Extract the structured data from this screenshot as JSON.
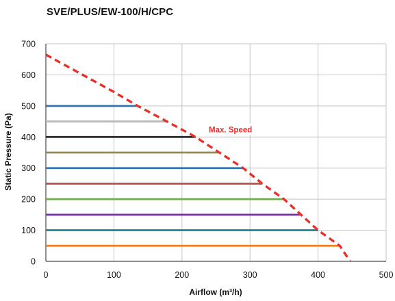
{
  "chart_data": {
    "type": "line",
    "title": "SVE/PLUS/EW-100/H/CPC",
    "xlabel": "Airflow (m³/h)",
    "ylabel": "Static Pressure (Pa)",
    "xlim": [
      0,
      500
    ],
    "ylim": [
      0,
      700
    ],
    "x_ticks": [
      0,
      100,
      200,
      300,
      400,
      500
    ],
    "y_ticks": [
      0,
      100,
      200,
      300,
      400,
      500,
      600,
      700
    ],
    "grid": true,
    "series": [
      {
        "pressure": 500,
        "airflow_end": 135,
        "color": "#2e75b6"
      },
      {
        "pressure": 450,
        "airflow_end": 178,
        "color": "#b8b8b8"
      },
      {
        "pressure": 400,
        "airflow_end": 220,
        "color": "#262626"
      },
      {
        "pressure": 350,
        "airflow_end": 255,
        "color": "#948a54"
      },
      {
        "pressure": 300,
        "airflow_end": 290,
        "color": "#2e75b6"
      },
      {
        "pressure": 250,
        "airflow_end": 318,
        "color": "#c0504d"
      },
      {
        "pressure": 200,
        "airflow_end": 350,
        "color": "#70ad47"
      },
      {
        "pressure": 150,
        "airflow_end": 375,
        "color": "#7030a0"
      },
      {
        "pressure": 100,
        "airflow_end": 400,
        "color": "#1f8a9a"
      },
      {
        "pressure": 50,
        "airflow_end": 432,
        "color": "#f07d22"
      }
    ],
    "max_speed_curve": {
      "name": "Max. Speed",
      "color": "#e8302a",
      "x": [
        0,
        100,
        135,
        178,
        220,
        255,
        290,
        318,
        350,
        375,
        400,
        432,
        447
      ],
      "y": [
        665,
        545,
        500,
        450,
        400,
        350,
        300,
        250,
        200,
        150,
        100,
        50,
        0
      ]
    },
    "annotation": {
      "text": "Max. Speed",
      "x": 240,
      "y": 428,
      "color": "#e8302a"
    }
  }
}
